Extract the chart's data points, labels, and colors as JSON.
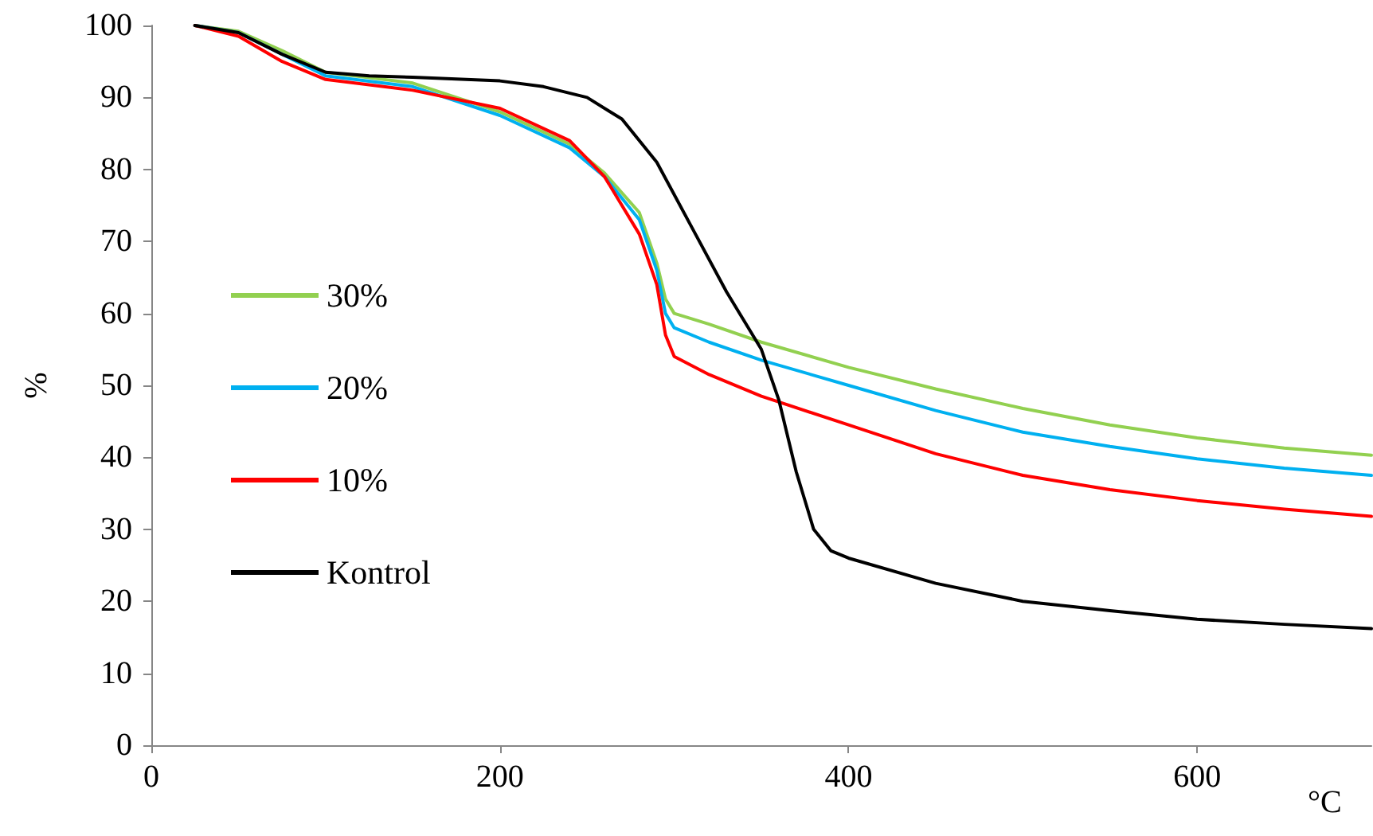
{
  "chart_data": {
    "type": "line",
    "xlabel": "°C",
    "ylabel": "%",
    "xlim": [
      0,
      700
    ],
    "xticks": [
      0,
      200,
      400,
      600
    ],
    "ylim": [
      0,
      100
    ],
    "yticks": [
      0,
      10,
      20,
      30,
      40,
      50,
      60,
      70,
      80,
      90,
      100
    ],
    "grid": false,
    "legend": "left",
    "marker": "none",
    "line_style": "solid",
    "series": [
      {
        "name": "30%",
        "color": "#92d050",
        "x": [
          25,
          50,
          75,
          100,
          150,
          200,
          240,
          260,
          280,
          290,
          295,
          300,
          320,
          350,
          400,
          450,
          500,
          550,
          600,
          650,
          700
        ],
        "values": [
          100,
          99.2,
          96.5,
          93.5,
          92,
          88,
          83.5,
          79.5,
          74,
          67,
          62,
          60,
          58.5,
          56,
          52.5,
          49.5,
          46.8,
          44.5,
          42.7,
          41.3,
          40.3
        ]
      },
      {
        "name": "20%",
        "color": "#00b0f0",
        "x": [
          25,
          50,
          75,
          100,
          150,
          200,
          240,
          260,
          280,
          290,
          295,
          300,
          320,
          350,
          400,
          450,
          500,
          550,
          600,
          650,
          700
        ],
        "values": [
          100,
          99,
          96,
          93,
          91.5,
          87.5,
          83,
          79,
          73,
          66,
          60,
          58,
          56,
          53.5,
          50,
          46.5,
          43.5,
          41.5,
          39.8,
          38.5,
          37.5
        ]
      },
      {
        "name": "10%",
        "color": "#ff0000",
        "x": [
          25,
          50,
          75,
          100,
          150,
          200,
          240,
          260,
          280,
          290,
          295,
          300,
          320,
          350,
          400,
          450,
          500,
          550,
          600,
          650,
          700
        ],
        "values": [
          100,
          98.5,
          95,
          92.5,
          91,
          88.5,
          84,
          79,
          71,
          64,
          57,
          54,
          51.5,
          48.5,
          44.5,
          40.5,
          37.5,
          35.5,
          34,
          32.8,
          31.8
        ]
      },
      {
        "name": "Kontrol",
        "color": "#000000",
        "x": [
          25,
          50,
          75,
          100,
          125,
          150,
          200,
          225,
          250,
          270,
          290,
          310,
          330,
          350,
          360,
          370,
          380,
          390,
          400,
          450,
          500,
          550,
          600,
          650,
          700
        ],
        "values": [
          100,
          99,
          96,
          93.5,
          93,
          92.8,
          92.3,
          91.5,
          90,
          87,
          81,
          72,
          63,
          55,
          48,
          38,
          30,
          27,
          26,
          22.5,
          20,
          18.7,
          17.5,
          16.8,
          16.2
        ]
      }
    ]
  }
}
